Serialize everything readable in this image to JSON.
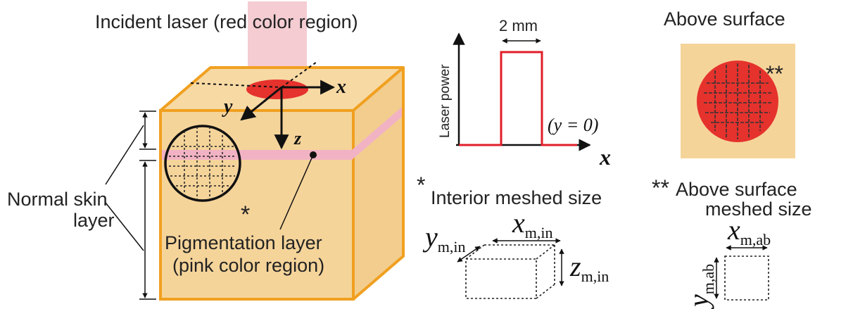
{
  "labels": {
    "incident_laser": "Incident laser (red color region)",
    "axis_x": "x",
    "axis_y": "y",
    "axis_z": "z",
    "normal_skin_line1": "Normal skin",
    "normal_skin_line2": "layer",
    "pigmentation_line1": "Pigmentation layer",
    "pigmentation_line2": "(pink color region)",
    "star_single": "*",
    "star_double": "**"
  },
  "profile": {
    "width_label": "2 mm",
    "ylabel": "Laser power",
    "xlabel": "x",
    "condition": "(y = 0)"
  },
  "above_surface": {
    "title": "Above surface",
    "marker": "**"
  },
  "interior_mesh": {
    "star": "*",
    "title": "Interior meshed size",
    "x_main": "x",
    "x_sub": "m,in",
    "y_main": "y",
    "y_sub": "m,in",
    "z_main": "z",
    "z_sub": "m,in"
  },
  "surface_mesh": {
    "star": "**",
    "title_line1": "Above surface",
    "title_line2": "meshed size",
    "x_main": "x",
    "x_sub": "m,ab",
    "y_main": "y",
    "y_sub": "m,ab"
  },
  "colors": {
    "skin": "#f5d49a",
    "skin_edge": "#f0a020",
    "laser_beam": "#f3c6cd",
    "laser_spot": "#e5322d",
    "pigment_band": "#f1b3c4",
    "profile_line": "#e01e2a"
  }
}
